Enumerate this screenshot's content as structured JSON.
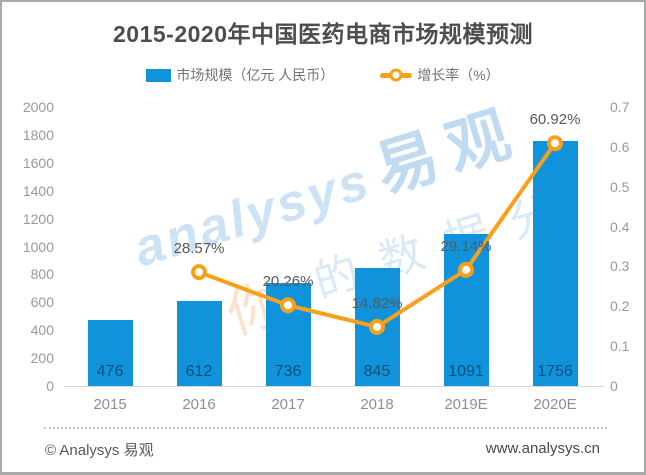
{
  "title": "2015-2020年中国医药电商市场规模预测",
  "footer": {
    "left": "© Analysys 易观",
    "right": "www.analysys.cn"
  },
  "watermark": {
    "brand_latin": "analysys",
    "brand_cjk": "易观",
    "tagline": "的数据分",
    "accent_char": "你"
  },
  "colors": {
    "bar": "#1193DB",
    "line": "#F9A01B",
    "title_text": "#4d4d4d",
    "axis_text": "#999999",
    "legend_text": "#737373"
  },
  "chart_data": {
    "type": "bar",
    "title": "2015-2020年中国医药电商市场规模预测",
    "categories": [
      "2015",
      "2016",
      "2017",
      "2018",
      "2019E",
      "2020E"
    ],
    "series": [
      {
        "name": "市场规模（亿元 人民币）",
        "type": "bar",
        "axis": "left",
        "values": [
          476,
          612,
          736,
          845,
          1091,
          1756
        ],
        "color": "#1193DB"
      },
      {
        "name": "增长率（%）",
        "type": "line",
        "axis": "right",
        "values": [
          null,
          0.2857,
          0.2026,
          0.1482,
          0.2914,
          0.6092
        ],
        "labels": [
          "",
          "28.57%",
          "20.26%",
          "14.82%",
          "29.14%",
          "60.92%"
        ],
        "color": "#F9A01B"
      }
    ],
    "left_axis": {
      "min": 0,
      "max": 2000,
      "step": 200,
      "ticks": [
        "0",
        "200",
        "400",
        "600",
        "800",
        "1000",
        "1200",
        "1400",
        "1600",
        "1800",
        "2000"
      ]
    },
    "right_axis": {
      "min": 0,
      "max": 0.7,
      "step": 0.1,
      "ticks": [
        "0",
        "0.1",
        "0.2",
        "0.3",
        "0.4",
        "0.5",
        "0.6",
        "0.7"
      ]
    },
    "legend_position": "top",
    "grid": false
  }
}
